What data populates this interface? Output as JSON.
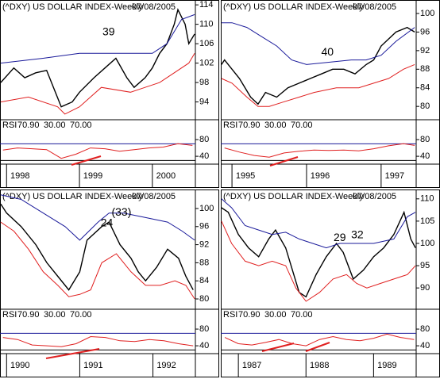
{
  "chart_data": [
    {
      "type": "stock",
      "title": "(^DXY) US DOLLAR INDEX-Weekly",
      "date": "07/08/2005",
      "xlim": [
        1997.91,
        2000.59
      ],
      "xticks": [
        {
          "value": 1998,
          "label": "1998"
        },
        {
          "value": 1999,
          "label": "1999"
        },
        {
          "value": 2000,
          "label": "2000"
        }
      ],
      "ylim": [
        90.5,
        115
      ],
      "yticks": [
        94,
        98,
        102,
        106,
        110,
        114
      ],
      "annotations": [
        {
          "text": "39",
          "x": 1999.4,
          "y": 108.3
        }
      ],
      "series": [
        {
          "color": "#000000",
          "x": [
            1997.92,
            1998.1,
            1998.25,
            1998.4,
            1998.55,
            1998.75,
            1998.9,
            1999.0,
            1999.2,
            1999.35,
            1999.5,
            1999.65,
            1999.75,
            1999.9,
            2000.0,
            2000.1,
            2000.2,
            2000.3,
            2000.35,
            2000.45,
            2000.5,
            2000.58
          ],
          "values": [
            98,
            101,
            99,
            100,
            100.5,
            93,
            94,
            96,
            99,
            101,
            103,
            99,
            97,
            99,
            101,
            104,
            106,
            110,
            113,
            110,
            106,
            108
          ]
        },
        {
          "color": "#1a1a9a",
          "x": [
            1997.92,
            1998.5,
            1999.0,
            1999.5,
            2000.0,
            2000.2,
            2000.4,
            2000.58
          ],
          "values": [
            102,
            103,
            104,
            104,
            104,
            106,
            111,
            112
          ]
        },
        {
          "color": "#e02020",
          "x": [
            1997.92,
            1998.3,
            1998.7,
            1998.8,
            1999.0,
            1999.3,
            1999.7,
            1999.9,
            2000.1,
            2000.3,
            2000.5,
            2000.58
          ],
          "values": [
            94,
            95,
            93,
            91.5,
            93,
            97,
            96,
            97,
            98,
            100,
            102,
            104
          ]
        }
      ],
      "rsi": {
        "name": "RSI",
        "current": {
          "value": 70.9,
          "label": "70.90"
        },
        "levels": [
          {
            "value": 30,
            "label": "30.00"
          },
          {
            "value": 70,
            "label": "70.00"
          }
        ],
        "ylim": [
          25,
          101
        ],
        "yticks": [
          40,
          80
        ],
        "color": "#e02020",
        "x": [
          1997.95,
          1998.15,
          1998.35,
          1998.55,
          1998.75,
          1998.95,
          1999.15,
          1999.35,
          1999.55,
          1999.75,
          1999.95,
          2000.15,
          2000.35,
          2000.55
        ],
        "values": [
          55,
          60,
          58,
          56,
          35,
          45,
          60,
          58,
          52,
          56,
          60,
          62,
          70,
          66
        ]
      }
    },
    {
      "type": "stock",
      "title": "(^DXY) US DOLLAR INDEX-Weekly",
      "date": "07/08/2005",
      "xlim": [
        1994.85,
        1997.47
      ],
      "xticks": [
        {
          "value": 1995,
          "label": "1995"
        },
        {
          "value": 1996,
          "label": "1996"
        },
        {
          "value": 1997,
          "label": "1997"
        }
      ],
      "ylim": [
        77.3,
        102.9
      ],
      "yticks": [
        80,
        84,
        88,
        92,
        96,
        100
      ],
      "annotations": [
        {
          "text": "40",
          "x": 1996.28,
          "y": 91.6
        }
      ],
      "series": [
        {
          "color": "#000000",
          "x": [
            1994.86,
            1994.9,
            1995.0,
            1995.1,
            1995.25,
            1995.35,
            1995.45,
            1995.6,
            1995.75,
            1995.9,
            1996.05,
            1996.2,
            1996.35,
            1996.5,
            1996.65,
            1996.8,
            1996.9,
            1997.0,
            1997.2,
            1997.35,
            1997.45
          ],
          "values": [
            89,
            90,
            88,
            86,
            82,
            80.5,
            83,
            82,
            84,
            85,
            86,
            87,
            88,
            88,
            87,
            89,
            90,
            93,
            96,
            97,
            96
          ]
        },
        {
          "color": "#1a1a9a",
          "x": [
            1994.86,
            1995.0,
            1995.2,
            1995.4,
            1995.6,
            1995.8,
            1996.0,
            1996.3,
            1996.6,
            1996.8,
            1997.0,
            1997.2,
            1997.45
          ],
          "values": [
            98,
            98,
            97,
            95,
            93,
            90,
            89,
            89.5,
            90,
            90,
            91,
            94,
            97
          ]
        },
        {
          "color": "#e02020",
          "x": [
            1994.86,
            1995.0,
            1995.2,
            1995.35,
            1995.5,
            1995.7,
            1995.9,
            1996.1,
            1996.4,
            1996.7,
            1996.9,
            1997.1,
            1997.3,
            1997.45
          ],
          "values": [
            86,
            85,
            82,
            80,
            80,
            81,
            82,
            83,
            84,
            84,
            85,
            86,
            88,
            89
          ]
        }
      ],
      "rsi": {
        "name": "RSI",
        "current": {
          "value": 70.9,
          "label": "70.90"
        },
        "levels": [
          {
            "value": 30,
            "label": "30.00"
          },
          {
            "value": 70,
            "label": "70.00"
          }
        ],
        "ylim": [
          25,
          101
        ],
        "yticks": [
          40,
          80
        ],
        "color": "#e02020",
        "x": [
          1994.9,
          1995.1,
          1995.3,
          1995.5,
          1995.7,
          1995.9,
          1996.1,
          1996.3,
          1996.5,
          1996.7,
          1996.9,
          1997.1,
          1997.3,
          1997.45
        ],
        "values": [
          60,
          50,
          42,
          38,
          48,
          52,
          55,
          54,
          55,
          53,
          58,
          65,
          70,
          66
        ]
      }
    },
    {
      "type": "stock",
      "title": "(^DXY) US DOLLAR INDEX-Weekly",
      "date": "07/08/2005",
      "xlim": [
        1989.91,
        1992.58
      ],
      "xticks": [
        {
          "value": 1990,
          "label": "1990"
        },
        {
          "value": 1991,
          "label": "1991"
        },
        {
          "value": 1992,
          "label": "1992"
        }
      ],
      "ylim": [
        77.9,
        104.2
      ],
      "yticks": [
        80,
        84,
        88,
        92,
        96,
        100
      ],
      "annotations": [
        {
          "text": "24",
          "x": 1991.37,
          "y": 96.7
        },
        {
          "text": "(33)",
          "x": 1991.57,
          "y": 99.1
        }
      ],
      "series": [
        {
          "color": "#000000",
          "x": [
            1989.92,
            1990.0,
            1990.2,
            1990.4,
            1990.55,
            1990.7,
            1990.85,
            1991.0,
            1991.1,
            1991.3,
            1991.4,
            1991.55,
            1991.7,
            1991.8,
            1991.9,
            1992.05,
            1992.2,
            1992.35,
            1992.45,
            1992.55
          ],
          "values": [
            101,
            99,
            96,
            92,
            88,
            85,
            82,
            86,
            93,
            96,
            97,
            92,
            89,
            86,
            84,
            87,
            91,
            89,
            85,
            82
          ]
        },
        {
          "color": "#1a1a9a",
          "x": [
            1989.92,
            1990.2,
            1990.5,
            1990.8,
            1991.0,
            1991.25,
            1991.4,
            1991.6,
            1991.9,
            1992.2,
            1992.4,
            1992.57
          ],
          "values": [
            103,
            102,
            99,
            96,
            93,
            97,
            99,
            99,
            98,
            97,
            95,
            93
          ]
        },
        {
          "color": "#e02020",
          "x": [
            1989.92,
            1990.1,
            1990.3,
            1990.5,
            1990.7,
            1990.85,
            1991.0,
            1991.15,
            1991.3,
            1991.5,
            1991.7,
            1991.9,
            1992.1,
            1992.3,
            1992.45,
            1992.57
          ],
          "values": [
            97,
            95,
            91,
            86,
            83,
            80.5,
            81,
            82,
            88,
            90,
            86,
            83,
            83,
            84,
            83,
            80
          ]
        }
      ],
      "rsi": {
        "name": "RSI",
        "current": {
          "value": 70.9,
          "label": "70.90"
        },
        "levels": [
          {
            "value": 30,
            "label": "30.00"
          },
          {
            "value": 70,
            "label": "70.00"
          }
        ],
        "ylim": [
          25,
          101
        ],
        "yticks": [
          40,
          80
        ],
        "color": "#e02020",
        "x": [
          1989.95,
          1990.15,
          1990.35,
          1990.55,
          1990.75,
          1990.95,
          1991.15,
          1991.35,
          1991.55,
          1991.75,
          1991.95,
          1992.15,
          1992.35,
          1992.55
        ],
        "values": [
          60,
          55,
          42,
          40,
          38,
          45,
          62,
          60,
          52,
          50,
          55,
          52,
          45,
          40
        ]
      }
    },
    {
      "type": "stock",
      "title": "(^DXY) US DOLLAR INDEX-Weekly",
      "date": "07/08/2005",
      "xlim": [
        1986.74,
        1989.63
      ],
      "xticks": [
        {
          "value": 1987,
          "label": "1987"
        },
        {
          "value": 1988,
          "label": "1988"
        },
        {
          "value": 1989,
          "label": "1989"
        }
      ],
      "ylim": [
        85.4,
        112.1
      ],
      "yticks": [
        90,
        95,
        100,
        105,
        110
      ],
      "annotations": [
        {
          "text": "29",
          "x": 1988.5,
          "y": 101.2
        },
        {
          "text": "32",
          "x": 1988.76,
          "y": 101.8
        }
      ],
      "series": [
        {
          "color": "#000000",
          "x": [
            1986.75,
            1986.85,
            1987.0,
            1987.15,
            1987.3,
            1987.45,
            1987.55,
            1987.7,
            1987.8,
            1987.9,
            1988.0,
            1988.15,
            1988.3,
            1988.45,
            1988.55,
            1988.7,
            1988.85,
            1989.0,
            1989.15,
            1989.3,
            1989.45,
            1989.55,
            1989.62
          ],
          "values": [
            108,
            107,
            102,
            99,
            97,
            101,
            103,
            99,
            94,
            89,
            88,
            93,
            97,
            100,
            98,
            92,
            94,
            97,
            99,
            102,
            107,
            101,
            99
          ]
        },
        {
          "color": "#1a1a9a",
          "x": [
            1986.75,
            1986.9,
            1987.1,
            1987.3,
            1987.5,
            1987.7,
            1987.9,
            1988.1,
            1988.3,
            1988.5,
            1988.8,
            1989.0,
            1989.3,
            1989.5,
            1989.62
          ],
          "values": [
            110,
            108,
            104,
            103,
            102,
            102.5,
            101,
            100,
            99,
            100,
            100,
            100,
            101,
            106,
            107
          ]
        },
        {
          "color": "#e02020",
          "x": [
            1986.75,
            1986.9,
            1987.1,
            1987.3,
            1987.5,
            1987.7,
            1987.85,
            1988.0,
            1988.2,
            1988.4,
            1988.6,
            1988.75,
            1988.9,
            1989.1,
            1989.3,
            1989.5,
            1989.62
          ],
          "values": [
            105,
            100,
            96,
            95,
            96,
            95,
            90,
            87,
            89,
            92,
            93,
            91,
            90,
            91,
            92,
            93,
            95
          ]
        }
      ],
      "rsi": {
        "name": "RSI",
        "current": {
          "value": 70.9,
          "label": "70.90"
        },
        "levels": [
          {
            "value": 30,
            "label": "30.00"
          },
          {
            "value": 70,
            "label": "70.00"
          }
        ],
        "ylim": [
          25,
          101
        ],
        "yticks": [
          40,
          80
        ],
        "color": "#e02020",
        "x": [
          1986.8,
          1987.0,
          1987.2,
          1987.4,
          1987.6,
          1987.8,
          1988.0,
          1988.2,
          1988.4,
          1988.6,
          1988.8,
          1989.0,
          1989.2,
          1989.4,
          1989.6
        ],
        "values": [
          60,
          45,
          42,
          48,
          55,
          45,
          40,
          55,
          62,
          55,
          52,
          58,
          68,
          60,
          55
        ]
      }
    }
  ]
}
